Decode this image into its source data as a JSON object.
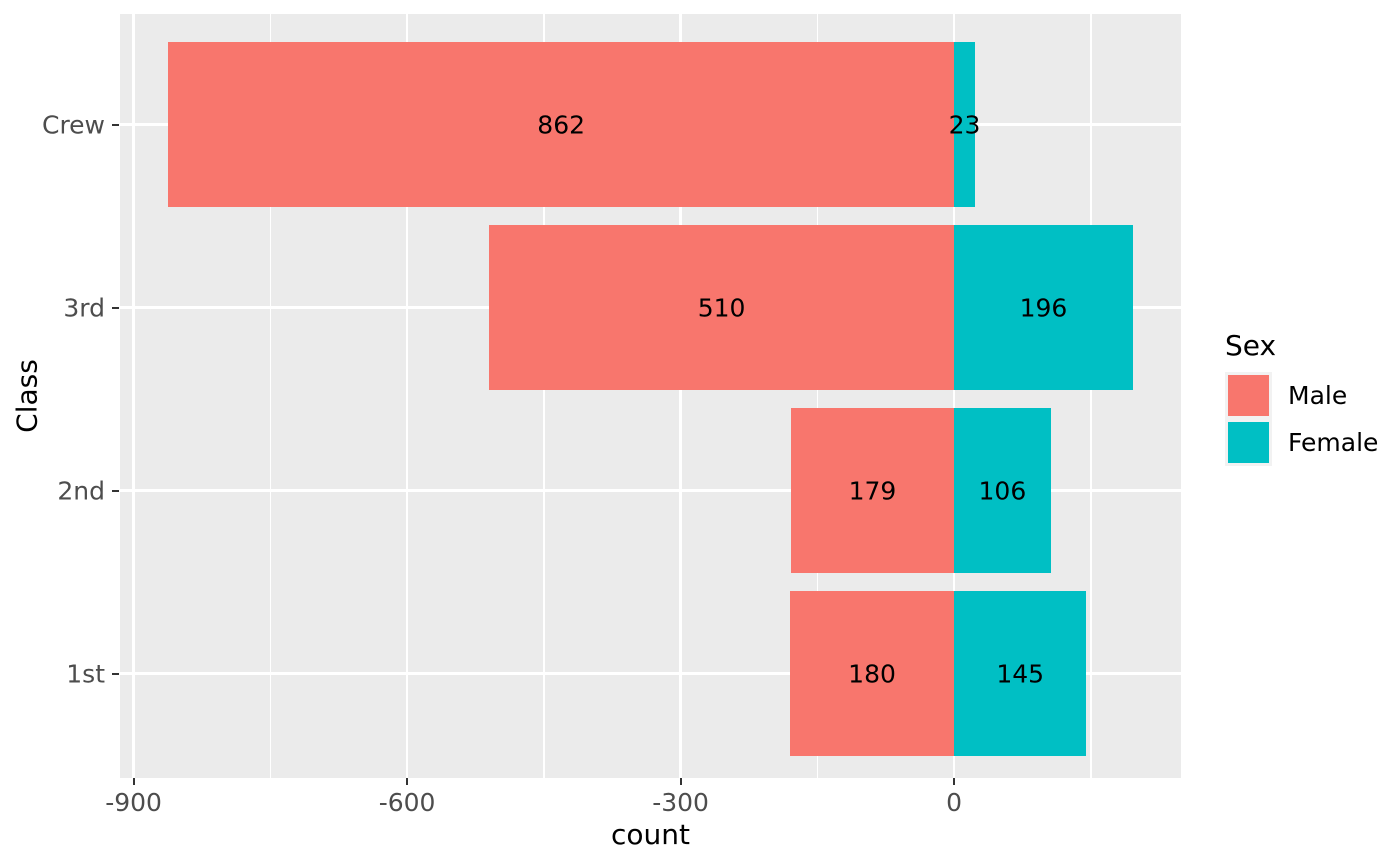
{
  "chart_data": {
    "type": "bar",
    "orientation": "horizontal-diverging",
    "title": "",
    "xlabel": "count",
    "ylabel": "Class",
    "categories": [
      "Crew",
      "3rd",
      "2nd",
      "1st"
    ],
    "series": [
      {
        "name": "Male",
        "direction": "negative",
        "color": "#F8766D",
        "values": [
          862,
          510,
          179,
          180
        ]
      },
      {
        "name": "Female",
        "direction": "positive",
        "color": "#00BFC4",
        "values": [
          23,
          196,
          106,
          145
        ]
      }
    ],
    "bar_labels": {
      "Male": [
        862,
        510,
        179,
        180
      ],
      "Female": [
        23,
        196,
        106,
        145
      ]
    },
    "x_axis": {
      "major_ticks": [
        -900,
        -600,
        -300,
        0
      ],
      "minor_gridlines": [
        -750,
        -450,
        -150,
        150
      ],
      "range": [
        -914.9,
        248.9
      ]
    },
    "legend": {
      "title": "Sex",
      "position": "right",
      "entries": [
        "Male",
        "Female"
      ]
    },
    "grid": true
  },
  "styles": {
    "panel_background": "#EBEBEB",
    "grid_color": "#FFFFFF",
    "tick_label_color": "#4D4D4D",
    "tick_mark_color": "#333333",
    "text_color": "#000000",
    "legend_key_background": "#F2F2F2",
    "figure_background": "#FFFFFF"
  }
}
